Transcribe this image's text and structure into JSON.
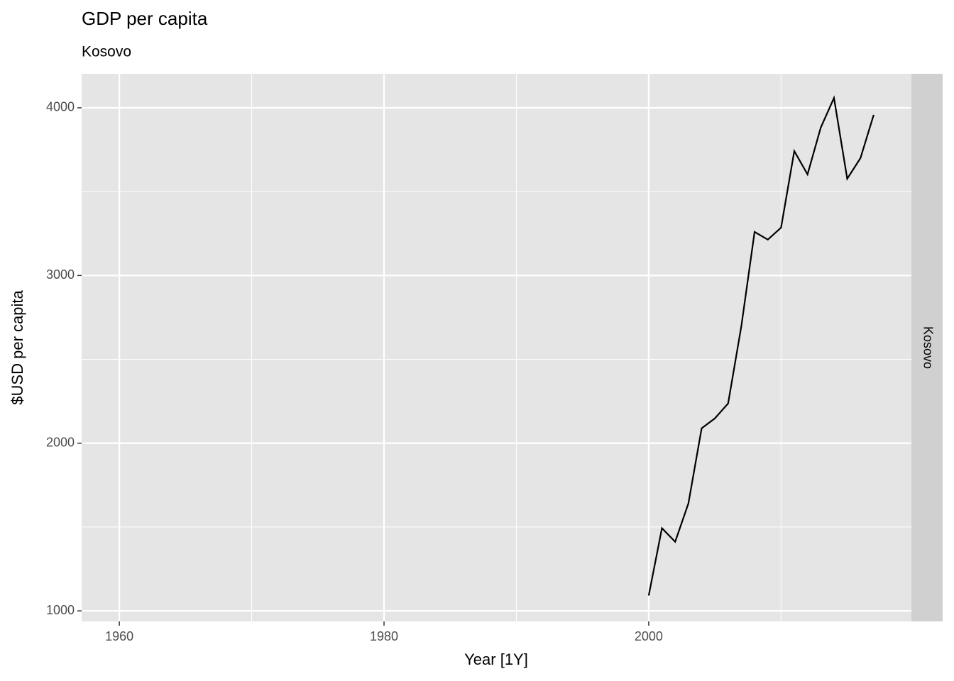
{
  "chart_data": {
    "type": "line",
    "title": "GDP per capita",
    "subtitle": "Kosovo",
    "x_label": "Year [1Y]",
    "y_label": "$USD per capita",
    "facet": "Kosovo",
    "x": [
      2000,
      2001,
      2002,
      2003,
      2004,
      2005,
      2006,
      2007,
      2008,
      2009,
      2010,
      2011,
      2012,
      2013,
      2014,
      2015,
      2016,
      2017
    ],
    "series": [
      {
        "name": "Kosovo",
        "color": "#000000",
        "values": [
          1091,
          1493,
          1412,
          1641,
          2089,
          2148,
          2237,
          2698,
          3260,
          3214,
          3285,
          3742,
          3603,
          3882,
          4059,
          3577,
          3700,
          3958
        ]
      }
    ],
    "xlim": [
      1957.15,
      2019.85
    ],
    "xticks": [
      1960,
      1980,
      2000
    ],
    "ylim": [
      937,
      4203
    ],
    "yticks": [
      1000,
      2000,
      3000,
      4000
    ],
    "grid": true
  }
}
